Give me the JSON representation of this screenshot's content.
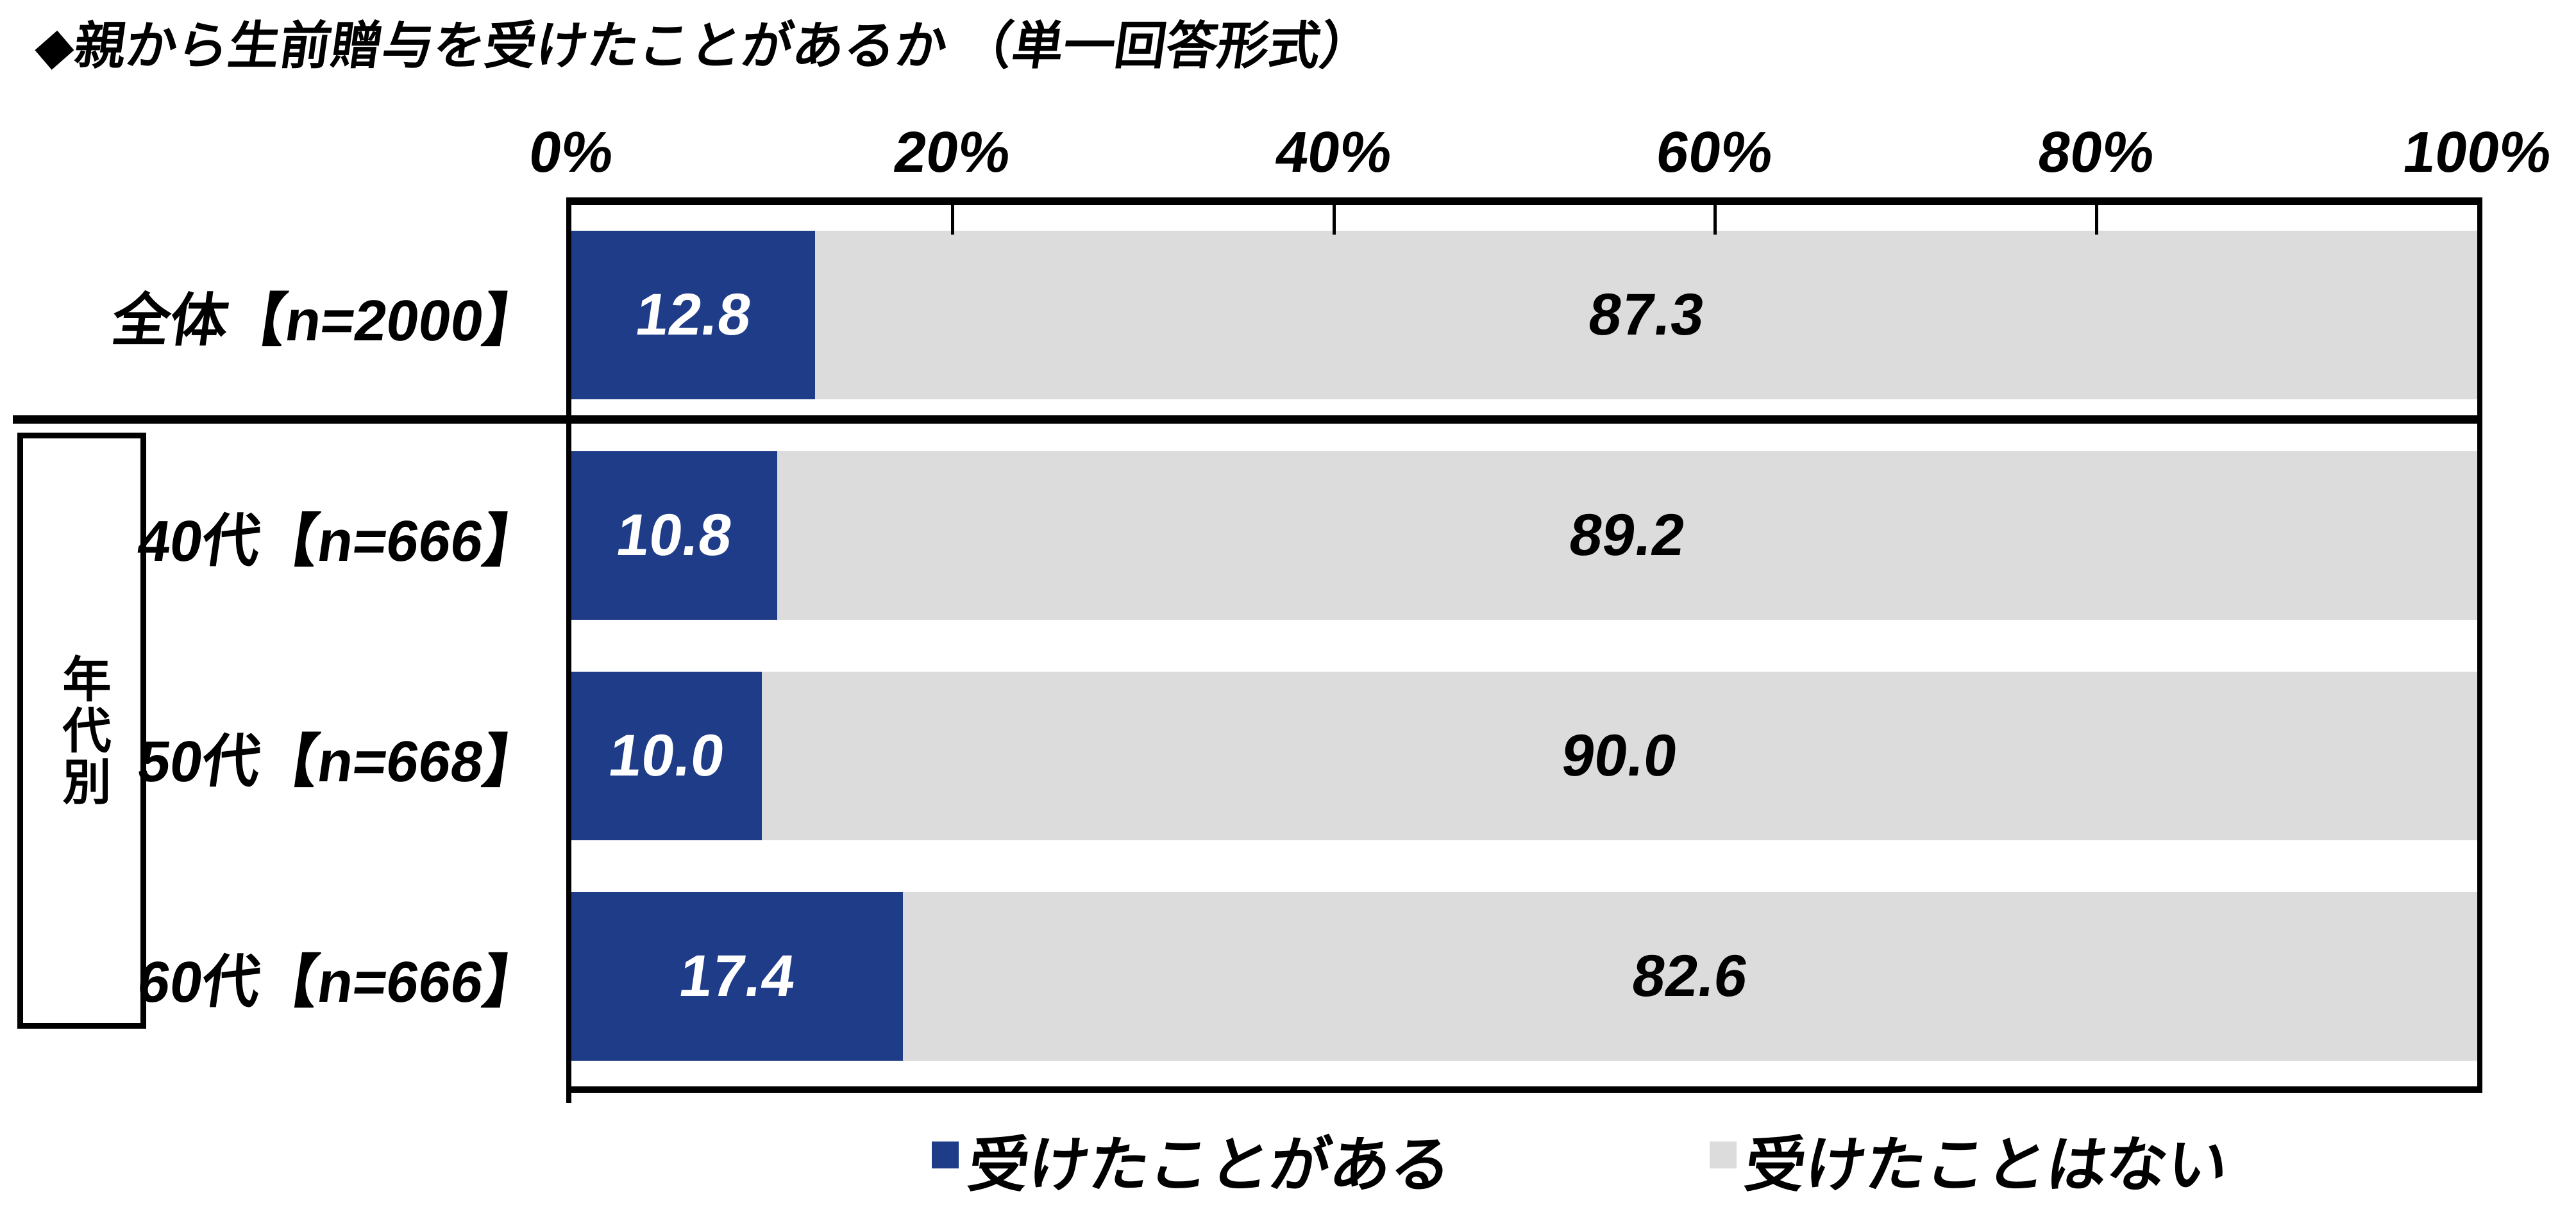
{
  "title": "◆親から生前贈与を受けたことがあるか （単一回答形式）",
  "colors": {
    "bar_yes": "#1E3C87",
    "bar_no": "#DCDCDC",
    "bar_yes_text": "#FFFFFF",
    "bar_no_text": "#000000",
    "frame": "#000000",
    "background": "#FFFFFF"
  },
  "chart_data": {
    "type": "bar",
    "orientation": "horizontal",
    "stacked": true,
    "unit": "%",
    "xlim": [
      0,
      100
    ],
    "axis_tick_labels": [
      "0%",
      "20%",
      "40%",
      "60%",
      "80%",
      "100%"
    ],
    "legend_position": "bottom",
    "grid": false,
    "group_label": "年代別",
    "categories": [
      "全体【n=2000】",
      "40代【n=666】",
      "50代【n=668】",
      "60代【n=666】"
    ],
    "series": [
      {
        "name": "受けたことがある",
        "color": "#1E3C87",
        "values": [
          12.8,
          10.8,
          10.0,
          17.4
        ]
      },
      {
        "name": "受けたことはない",
        "color": "#DCDCDC",
        "values": [
          87.3,
          89.2,
          90.0,
          82.6
        ]
      }
    ]
  }
}
